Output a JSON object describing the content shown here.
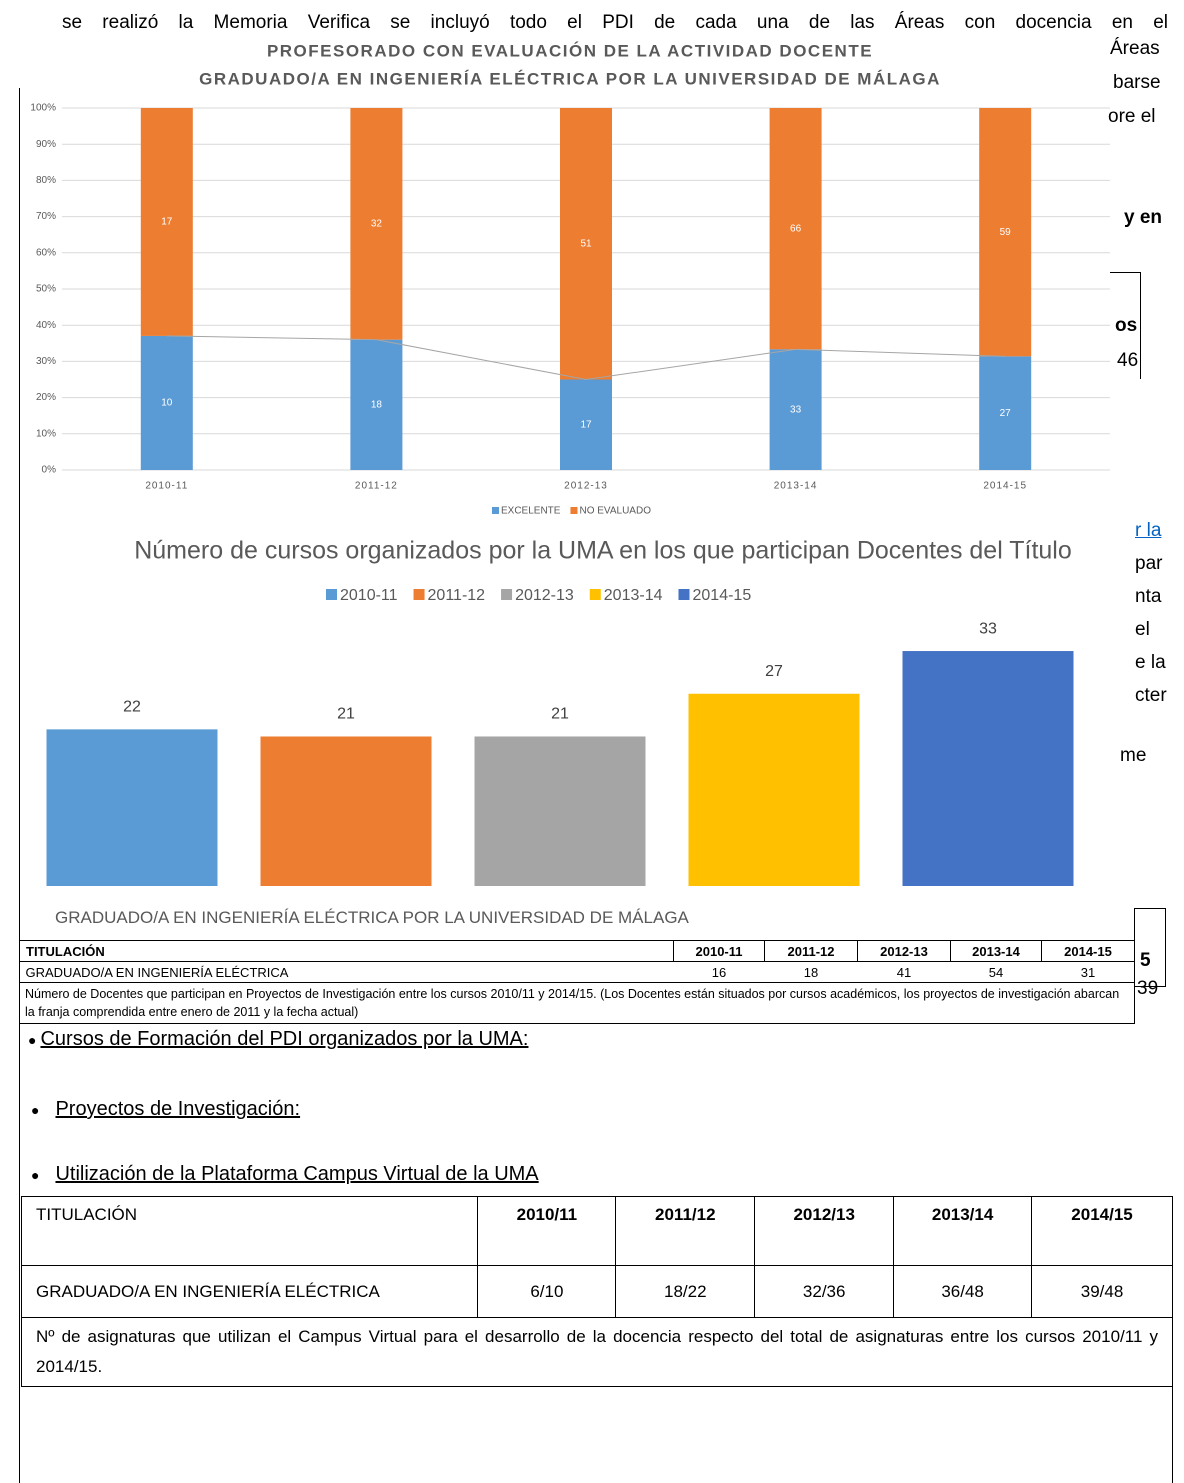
{
  "background_text": {
    "line1": "se realizó la Memoria Verifica se incluyó todo el PDI de cada una de las Áreas con docencia en el",
    "fragments": [
      "Áreas",
      "barse",
      "ore el",
      "y en",
      "os",
      "46",
      "r la",
      "par",
      "nta",
      "el",
      "e la",
      "cter",
      "me",
      "5",
      "39"
    ]
  },
  "chart_data": [
    {
      "type": "percent_stacked_bar",
      "title": "PROFESORADO CON EVALUACIÓN DE LA ACTIVIDAD DOCENTE",
      "subtitle": "GRADUADO/A EN INGENIERÍA ELÉCTRICA POR LA UNIVERSIDAD DE MÁLAGA",
      "categories": [
        "2010-11",
        "2011-12",
        "2012-13",
        "2013-14",
        "2014-15"
      ],
      "series": [
        {
          "name": "EXCELENTE",
          "color": "#5b9bd5",
          "values": [
            10,
            18,
            17,
            33,
            27
          ]
        },
        {
          "name": "NO EVALUADO",
          "color": "#ed7d31",
          "values": [
            17,
            32,
            51,
            66,
            59
          ]
        }
      ],
      "ylim": [
        0,
        100
      ],
      "yticks": [
        {
          "value": 0,
          "label": "0%"
        },
        {
          "value": 10,
          "label": "10%"
        },
        {
          "value": 20,
          "label": "20%"
        },
        {
          "value": 30,
          "label": "30%"
        },
        {
          "value": 40,
          "label": "40%"
        },
        {
          "value": 50,
          "label": "50%"
        },
        {
          "value": 60,
          "label": "60%"
        },
        {
          "value": 70,
          "label": "70%"
        },
        {
          "value": 80,
          "label": "80%"
        },
        {
          "value": 90,
          "label": "90%"
        },
        {
          "value": 100,
          "label": "100%"
        }
      ],
      "grid": true,
      "legend": "bottom"
    },
    {
      "type": "bar",
      "title": "Número de cursos organizados por la UMA en los que participan Docentes del Título",
      "categories": [
        "2010-11",
        "2011-12",
        "2012-13",
        "2013-14",
        "2014-15"
      ],
      "values": [
        22,
        21,
        21,
        27,
        33
      ],
      "colors": [
        "#5b9bd5",
        "#ed7d31",
        "#a5a5a5",
        "#ffc000",
        "#4472c4"
      ],
      "legend": "top"
    }
  ],
  "table1": {
    "caption": "GRADUADO/A EN INGENIERÍA ELÉCTRICA POR LA UNIVERSIDAD DE MÁLAGA",
    "header": [
      "TITULACIÓN",
      "2010-11",
      "2011-12",
      "2012-13",
      "2013-14",
      "2014-15"
    ],
    "rows": [
      [
        "GRADUADO/A EN INGENIERÍA ELÉCTRICA",
        "16",
        "18",
        "41",
        "54",
        "31"
      ]
    ],
    "note": "Número de Docentes que participan en Proyectos de Investigación entre los cursos 2010/11 y 2014/15. (Los Docentes están situados por cursos académicos, los proyectos de investigación abarcan la franja comprendida entre enero de 2011 y la fecha actual)"
  },
  "bullets": [
    "Cursos de Formación del PDI organizados por la UMA:",
    "Proyectos de Investigación:",
    "Utilización de la Plataforma Campus Virtual de la UMA"
  ],
  "table2": {
    "header": [
      "TITULACIÓN",
      "2010/11",
      "2011/12",
      "2012/13",
      "2013/14",
      "2014/15"
    ],
    "rows": [
      [
        "GRADUADO/A EN INGENIERÍA ELÉCTRICA",
        "6/10",
        "18/22",
        "32/36",
        "36/48",
        "39/48"
      ]
    ],
    "note": "Nº de asignaturas que utilizan el Campus Virtual para el desarrollo de la docencia respecto del total de asignaturas entre los cursos 2010/11 y 2014/15."
  }
}
